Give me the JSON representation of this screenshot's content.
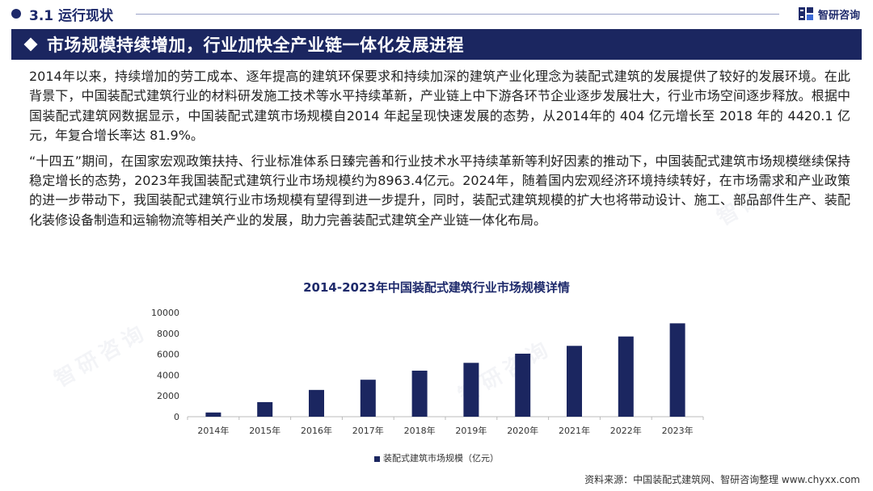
{
  "header": {
    "section_label": "3.1 运行现状",
    "brand_name": "智研咨询"
  },
  "headline": "市场规模持续增加，行业加快全产业链一体化发展进程",
  "paragraphs": [
    "2014年以来，持续增加的劳工成本、逐年提高的建筑环保要求和持续加深的建筑产业化理念为装配式建筑的发展提供了较好的发展环境。在此背景下，中国装配式建筑行业的材料研发施工技术等水平持续革新，产业链上中下游各环节企业逐步发展壮大，行业市场空间逐步释放。根据中国装配式建筑网数据显示，中国装配式建筑市场规模自2014 年起呈现快速发展的态势，从2014年的 404 亿元增长至 2018 年的 4420.1 亿元，年复合增长率达 81.9%。",
    "“十四五”期间，在国家宏观政策扶持、行业标准体系日臻完善和行业技术水平持续革新等利好因素的推动下，中国装配式建筑市场规模继续保持稳定增长的态势，2023年我国装配式建筑行业市场规模约为8963.4亿元。2024年，随着国内宏观经济环境持续转好，在市场需求和产业政策的进一步带动下，我国装配式建筑行业市场规模有望得到进一步提升，同时，装配式建筑规模的扩大也将带动设计、施工、部品部件生产、装配化装修设备制造和运输物流等相关产业的发展，助力完善装配式建筑全产业链一体化布局。"
  ],
  "chart_data": {
    "type": "bar",
    "title": "2014-2023年中国装配式建筑行业市场规模详情",
    "categories": [
      "2014年",
      "2015年",
      "2016年",
      "2017年",
      "2018年",
      "2019年",
      "2020年",
      "2021年",
      "2022年",
      "2023年"
    ],
    "series": [
      {
        "name": "装配式建筑市场规模（亿元）",
        "values": [
          404,
          1400,
          2570,
          3550,
          4420.1,
          5170,
          6050,
          6800,
          7700,
          8963.4
        ]
      }
    ],
    "ylim": [
      0,
      10000
    ],
    "yticks": [
      0,
      2000,
      4000,
      6000,
      8000,
      10000
    ],
    "grid": false,
    "legend": "bottom",
    "bar_color": "#1b2660"
  },
  "source": "资料来源：中国装配式建筑网、智研咨询整理 www.chyxx.com",
  "colors": {
    "primary": "#1b2660",
    "accent": "#1e2a6b"
  },
  "icons": {
    "brand_logo": "zhiyan-logo-icon",
    "section_bullet": "dot-icon",
    "headline_bullet": "diamond-icon"
  }
}
